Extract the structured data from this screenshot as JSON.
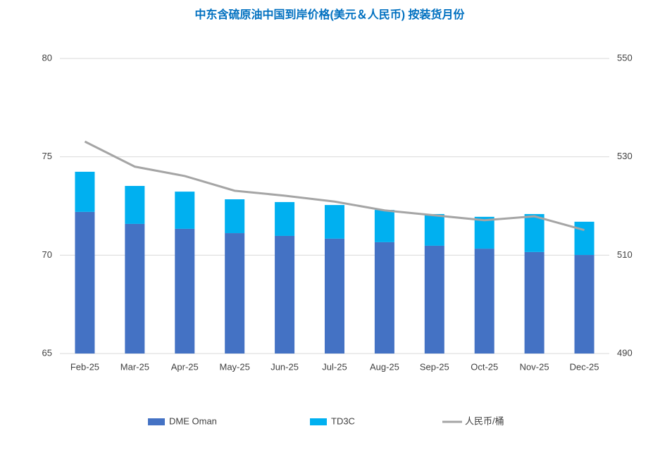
{
  "chart_data": {
    "type": "bar",
    "stacked": true,
    "title": "中东含硫原油中国到岸价格(美元＆人民币) 按装货月份",
    "categories": [
      "Feb-25",
      "Mar-25",
      "Apr-25",
      "May-25",
      "Jun-25",
      "Jul-25",
      "Aug-25",
      "Sep-25",
      "Oct-25",
      "Nov-25",
      "Dec-25"
    ],
    "series": [
      {
        "name": "DME Oman",
        "type": "bar",
        "color": "#4472c4",
        "values": [
          72.2,
          71.59,
          71.34,
          71.12,
          70.98,
          70.84,
          70.66,
          70.48,
          70.33,
          70.16,
          70.01
        ]
      },
      {
        "name": "TD3C",
        "type": "bar",
        "color": "#00b0f0",
        "values": [
          2.04,
          1.93,
          1.89,
          1.72,
          1.72,
          1.71,
          1.64,
          1.61,
          1.62,
          1.93,
          1.69
        ]
      },
      {
        "name": "人民币/桶",
        "type": "line",
        "axis": "y2",
        "color": "#a5a5a5",
        "values": [
          533.1,
          528.0,
          526.1,
          523.1,
          522.1,
          520.9,
          519.1,
          518.1,
          517.1,
          517.9,
          515.1
        ]
      }
    ],
    "ylim": [
      65,
      80
    ],
    "yticks": [
      65,
      70,
      75,
      80
    ],
    "y2lim": [
      490,
      550
    ],
    "y2ticks": [
      490,
      510,
      530,
      550
    ],
    "grid": true,
    "legend": "bottom"
  }
}
